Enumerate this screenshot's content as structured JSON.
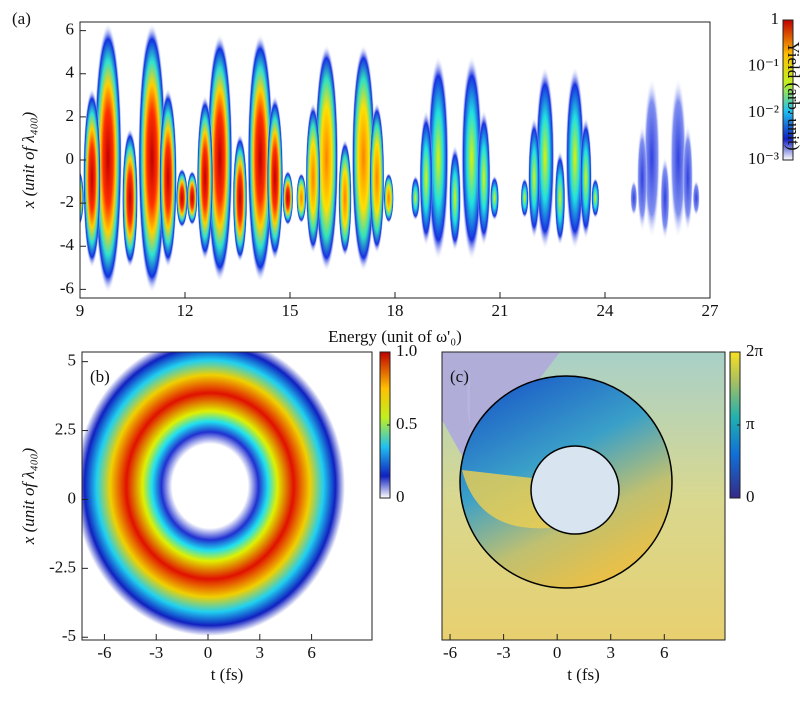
{
  "chart_data": [
    {
      "type": "heatmap",
      "panel_label": "(a)",
      "xlabel": "Energy (unit of  ω'₀)",
      "ylabel": "x (unit of λ₄₀₀)",
      "xlim": [
        9,
        27
      ],
      "xticks": [
        9,
        12,
        15,
        18,
        21,
        24,
        27
      ],
      "ylim": [
        -6.4,
        6.4
      ],
      "yticks": [
        -6,
        -4,
        -2,
        0,
        2,
        4,
        6
      ],
      "colorbar": {
        "label": "Yield (arb. unit)",
        "scale": "log",
        "lim": [
          0.001,
          1
        ],
        "ticks": [
          {
            "value": 1,
            "label": "1"
          },
          {
            "value": 0.1,
            "label": "10⁻¹"
          },
          {
            "value": 0.01,
            "label": "10⁻²"
          },
          {
            "value": 0.001,
            "label": "10⁻³"
          }
        ]
      }
    },
    {
      "type": "heatmap",
      "panel_label": "(b)",
      "xlabel": "t (fs)",
      "ylabel": "x (unit of λ₄₀₀)",
      "xlim": [
        -7.3,
        9.5
      ],
      "xticks": [
        -6,
        -3,
        0,
        3,
        6
      ],
      "ylim": [
        -5.1,
        5.35
      ],
      "yticks": [
        -5,
        -2.5,
        0,
        2.5,
        5
      ],
      "colorbar": {
        "scale": "linear",
        "lim": [
          0,
          1
        ],
        "ticks": [
          0,
          0.5,
          {
            "value": 1,
            "label": "1.0"
          }
        ]
      }
    },
    {
      "type": "heatmap",
      "panel_label": "(c)",
      "xlabel": "t (fs)",
      "xlim": [
        -6.45,
        9.4
      ],
      "xticks": [
        -6,
        -3,
        0,
        3,
        6
      ],
      "colorbar": {
        "scale": "linear",
        "lim": [
          0,
          6.28318
        ],
        "ticks": [
          {
            "value": 0,
            "label": "0"
          },
          {
            "value": 3.14159,
            "label": "π"
          },
          {
            "value": 6.28318,
            "label": "2π"
          }
        ]
      }
    }
  ]
}
